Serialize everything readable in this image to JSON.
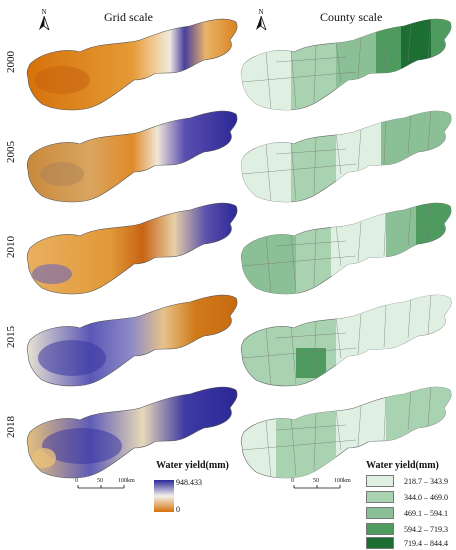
{
  "titles": {
    "grid": "Grid scale",
    "county": "County scale"
  },
  "years": [
    "2000",
    "2005",
    "2010",
    "2015",
    "2018"
  ],
  "north_symbol": "N",
  "legend_grid": {
    "title": "Water yield(mm)",
    "max_label": "948.433",
    "min_label": "0",
    "colors": {
      "high": "#2b2796",
      "mid": "#f3f1ec",
      "low": "#d6720a"
    }
  },
  "legend_county": {
    "title": "Water yield(mm)",
    "classes": [
      {
        "label": "218.7 – 343.9",
        "color": "#dff0e2"
      },
      {
        "label": "344.0 – 469.0",
        "color": "#a9d2b1"
      },
      {
        "label": "469.1 – 594.1",
        "color": "#8bbf95"
      },
      {
        "label": "594.2 – 719.3",
        "color": "#4f9a5f"
      },
      {
        "label": "719.4 – 844.4",
        "color": "#1d6e33"
      }
    ]
  },
  "scale_bar": {
    "ticks": [
      "0",
      "50",
      "100km"
    ]
  }
}
